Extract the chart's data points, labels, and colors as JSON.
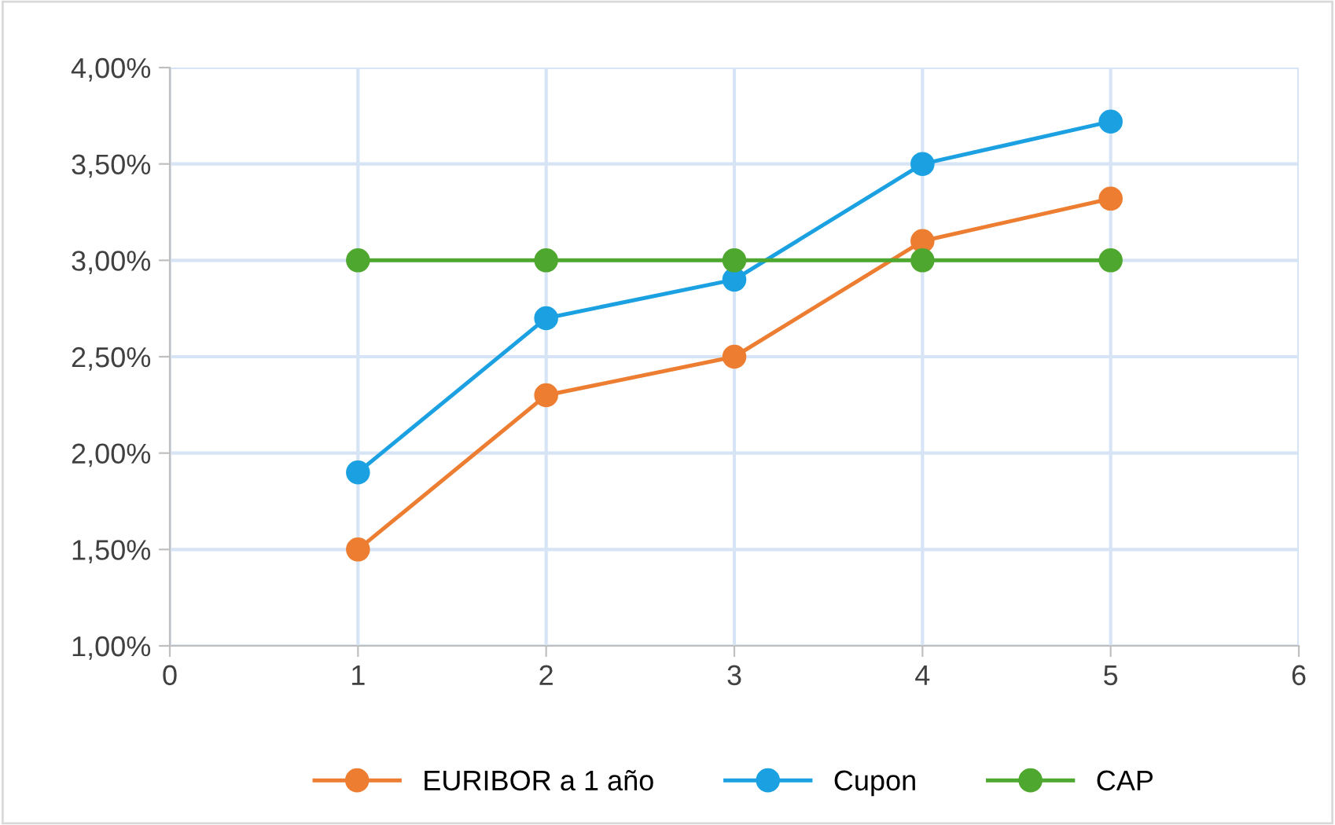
{
  "chart_data": {
    "type": "line",
    "x": [
      1,
      2,
      3,
      4,
      5
    ],
    "series": [
      {
        "name": "EURIBOR a 1 año",
        "color": "#ed7d31",
        "values": [
          1.5,
          2.3,
          2.5,
          3.1,
          3.32
        ]
      },
      {
        "name": "Cupon",
        "color": "#1ba1e2",
        "values": [
          1.9,
          2.7,
          2.9,
          3.5,
          3.72
        ]
      },
      {
        "name": "CAP",
        "color": "#4ea72e",
        "values": [
          3.0,
          3.0,
          3.0,
          3.0,
          3.0
        ]
      }
    ],
    "xlim": [
      0,
      6
    ],
    "xticks": [
      0,
      1,
      2,
      3,
      4,
      5,
      6
    ],
    "ylim": [
      1,
      4
    ],
    "yticks": [
      {
        "value": 1,
        "label": "1,00%"
      },
      {
        "value": 1.5,
        "label": "1,50%"
      },
      {
        "value": 2,
        "label": "2,00%"
      },
      {
        "value": 2.5,
        "label": "2,50%"
      },
      {
        "value": 3,
        "label": "3,00%"
      },
      {
        "value": 3.5,
        "label": "3,50%"
      },
      {
        "value": 4,
        "label": "4,00%"
      }
    ],
    "grid": true,
    "legend": "bottom",
    "marker": "circle",
    "line_style": "solid"
  }
}
